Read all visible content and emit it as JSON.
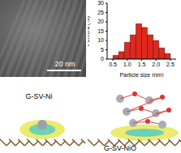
{
  "image": {
    "scale_bar": "20 nm"
  },
  "structures": [
    {
      "label": "G-SV-Ni"
    },
    {
      "label": "G-SV-NiO"
    }
  ],
  "chart_data": {
    "type": "histogram",
    "xlabel": "Particle size (nm)",
    "ylabel": "Percent (%)",
    "bins": [
      0.5,
      0.7,
      0.9,
      1.1,
      1.3,
      1.5,
      1.7,
      1.9,
      2.1,
      2.3,
      2.5
    ],
    "counts": [
      2,
      4,
      9,
      13,
      19,
      17,
      13,
      10,
      6,
      3
    ],
    "color": "#e3261d",
    "xlim": [
      0.3,
      2.7
    ],
    "xticks": [
      0.5,
      {
        "value": 1.0,
        "label": "1.0"
      },
      1.5,
      {
        "value": 2.0,
        "label": "2.0"
      },
      2.5
    ],
    "ylim": [
      0,
      30
    ],
    "yticks": [
      0,
      5,
      10,
      15,
      20,
      25,
      30
    ]
  }
}
